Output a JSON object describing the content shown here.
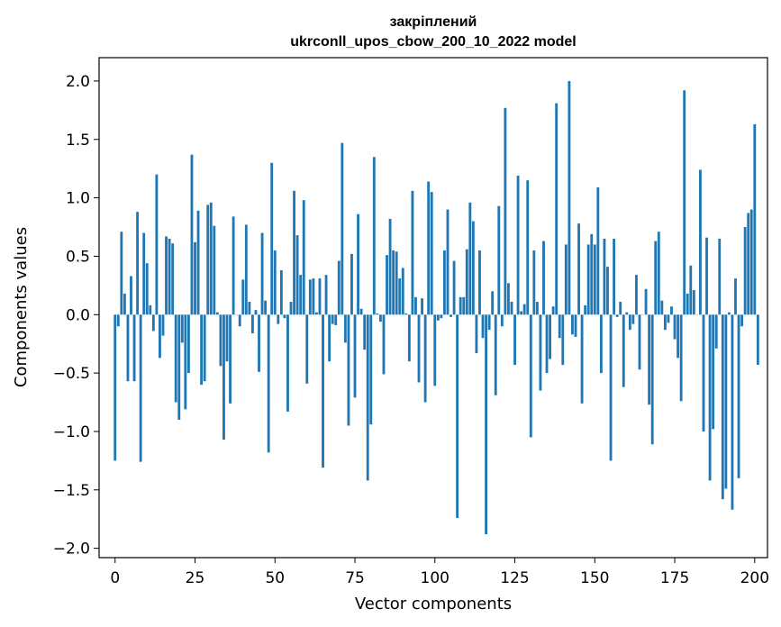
{
  "chart_data": {
    "type": "bar",
    "title_line1": "закріплений",
    "title_line2": "ukrconll_upos_cbow_200_10_2022 model",
    "xlabel": "Vector components",
    "ylabel": "Components values",
    "xlim": [
      -5,
      204
    ],
    "ylim": [
      -2.08,
      2.2
    ],
    "xticks": [
      0,
      25,
      50,
      75,
      100,
      125,
      150,
      175,
      200
    ],
    "xtick_labels": [
      "0",
      "25",
      "50",
      "75",
      "100",
      "125",
      "150",
      "175",
      "200"
    ],
    "yticks": [
      -2.0,
      -1.5,
      -1.0,
      -0.5,
      0.0,
      0.5,
      1.0,
      1.5,
      2.0
    ],
    "ytick_labels": [
      "−2.0",
      "−1.5",
      "−1.0",
      "−0.5",
      "0.0",
      "0.5",
      "1.0",
      "1.5",
      "2.0"
    ],
    "bar_color": "#1f77b4",
    "values": [
      -1.25,
      -0.1,
      0.71,
      0.18,
      -0.57,
      0.33,
      -0.57,
      0.88,
      -1.26,
      0.7,
      0.44,
      0.08,
      -0.14,
      1.2,
      -0.37,
      -0.18,
      0.67,
      0.65,
      0.61,
      -0.75,
      -0.9,
      -0.24,
      -0.81,
      -0.5,
      1.37,
      0.62,
      0.89,
      -0.6,
      -0.57,
      0.94,
      0.96,
      0.76,
      0.02,
      -0.44,
      -1.07,
      -0.4,
      -0.76,
      0.84,
      0.0,
      -0.1,
      0.3,
      0.77,
      0.11,
      -0.16,
      0.04,
      -0.49,
      0.7,
      0.12,
      -1.18,
      1.3,
      0.55,
      -0.08,
      0.38,
      -0.03,
      -0.83,
      0.11,
      1.06,
      0.68,
      0.34,
      0.98,
      -0.59,
      0.3,
      0.31,
      0.02,
      0.31,
      -1.31,
      0.34,
      -0.4,
      -0.08,
      -0.09,
      0.46,
      1.47,
      -0.24,
      -0.95,
      0.52,
      -0.71,
      0.86,
      0.05,
      -0.3,
      -1.42,
      -0.94,
      1.35,
      0.01,
      -0.06,
      -0.51,
      0.51,
      0.82,
      0.55,
      0.54,
      0.31,
      0.4,
      0.01,
      -0.4,
      1.06,
      0.15,
      -0.58,
      0.14,
      -0.75,
      1.14,
      1.05,
      -0.61,
      -0.05,
      -0.03,
      0.55,
      0.9,
      -0.02,
      0.46,
      -1.74,
      0.15,
      0.15,
      0.56,
      0.96,
      0.8,
      -0.33,
      0.55,
      -0.2,
      -1.88,
      -0.13,
      0.2,
      -0.69,
      0.93,
      -0.1,
      1.77,
      0.27,
      0.11,
      -0.43,
      1.19,
      0.03,
      0.09,
      1.15,
      -1.05,
      0.55,
      0.11,
      -0.65,
      0.63,
      -0.5,
      -0.38,
      0.07,
      1.81,
      -0.2,
      -0.43,
      0.6,
      2.0,
      -0.17,
      -0.19,
      0.78,
      -0.76,
      0.08,
      0.6,
      0.69,
      0.6,
      1.09,
      -0.5,
      0.65,
      0.41,
      -1.25,
      0.65,
      -0.02,
      0.11,
      -0.62,
      0.02,
      -0.13,
      -0.08,
      0.34,
      -0.47,
      0.0,
      0.22,
      -0.77,
      -1.11,
      0.63,
      0.71,
      0.12,
      -0.13,
      -0.07,
      0.07,
      -0.21,
      -0.37,
      -0.74,
      1.92,
      0.18,
      0.42,
      0.21,
      0.0,
      1.24,
      -1.0,
      0.66,
      -1.42,
      -0.98,
      -0.29,
      0.65,
      -1.58,
      -1.49,
      0.02,
      -1.67,
      0.31,
      -1.4,
      -0.1,
      0.75,
      0.87,
      0.9,
      1.63,
      -0.43
    ]
  }
}
